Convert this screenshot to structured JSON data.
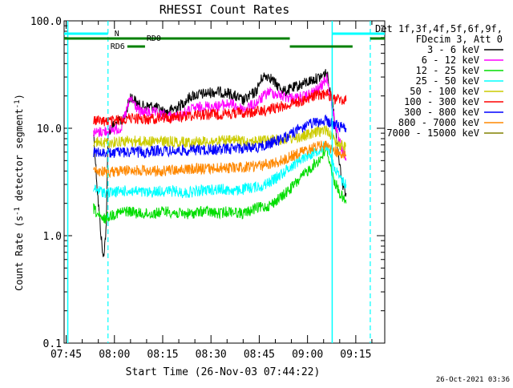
{
  "chart_data": {
    "type": "line",
    "title": "RHESSI Count Rates",
    "xlabel": "Start Time (26-Nov-03 07:44:22)",
    "ylabel_prefix": "Count Rate (s",
    "ylabel_sup": "-1",
    "ylabel_suffix": " detector segment",
    "ylabel_end": ")",
    "y_scale": "log",
    "ylim": [
      0.1,
      100.0
    ],
    "x_start": "07:44:22",
    "x_end": "09:24:00",
    "x_ticks": [
      "07:45",
      "08:00",
      "08:15",
      "08:30",
      "08:45",
      "09:00",
      "09:15"
    ],
    "y_ticks": [
      "0.1",
      "1.0",
      "10.0",
      "100.0"
    ],
    "grid": false,
    "legend_placement": "right",
    "legend_header": [
      "Det 1f,3f,4f,5f,6f,9f,",
      "FDecim 3, Att 0"
    ],
    "footer_date": "26-Oct-2021 03:36",
    "series": [
      {
        "name": "3 - 6 keV",
        "color": "#000000",
        "points": [
          [
            "07:53:30",
            9
          ],
          [
            "07:55:00",
            2.0
          ],
          [
            "07:56:30",
            0.6
          ],
          [
            "07:57:30",
            1.2
          ],
          [
            "07:58:00",
            9
          ],
          [
            "08:00:00",
            11
          ],
          [
            "08:03:00",
            12
          ],
          [
            "08:05:00",
            20
          ],
          [
            "08:08:00",
            16
          ],
          [
            "08:12:00",
            16
          ],
          [
            "08:16:00",
            14
          ],
          [
            "08:20:00",
            16
          ],
          [
            "08:24:00",
            20
          ],
          [
            "08:28:00",
            21
          ],
          [
            "08:32:00",
            22
          ],
          [
            "08:36:00",
            21
          ],
          [
            "08:40:00",
            18
          ],
          [
            "08:44:00",
            22
          ],
          [
            "08:46:00",
            30
          ],
          [
            "08:48:00",
            31
          ],
          [
            "08:50:00",
            26
          ],
          [
            "08:53:00",
            22
          ],
          [
            "08:56:00",
            24
          ],
          [
            "09:00:00",
            27
          ],
          [
            "09:04:00",
            30
          ],
          [
            "09:06:00",
            33
          ],
          [
            "09:08:00",
            15
          ],
          [
            "09:09:30",
            6
          ],
          [
            "09:11:00",
            3
          ],
          [
            "09:12:00",
            2.5
          ]
        ]
      },
      {
        "name": "6 - 12 keV",
        "color": "#ff00ff",
        "points": [
          [
            "07:53:30",
            9
          ],
          [
            "07:58:00",
            9.5
          ],
          [
            "08:02:00",
            10
          ],
          [
            "08:05:00",
            19
          ],
          [
            "08:08:00",
            14
          ],
          [
            "08:12:00",
            14
          ],
          [
            "08:16:00",
            13
          ],
          [
            "08:20:00",
            13
          ],
          [
            "08:24:00",
            15
          ],
          [
            "08:28:00",
            16
          ],
          [
            "08:32:00",
            16
          ],
          [
            "08:36:00",
            17
          ],
          [
            "08:40:00",
            15
          ],
          [
            "08:44:00",
            17
          ],
          [
            "08:48:00",
            22
          ],
          [
            "08:52:00",
            20
          ],
          [
            "08:56:00",
            19
          ],
          [
            "09:00:00",
            20
          ],
          [
            "09:04:00",
            24
          ],
          [
            "09:06:00",
            30
          ],
          [
            "09:08:00",
            14
          ],
          [
            "09:09:30",
            8
          ],
          [
            "09:11:00",
            6
          ],
          [
            "09:12:00",
            5
          ]
        ]
      },
      {
        "name": "12 - 25 keV",
        "color": "#00dd00",
        "points": [
          [
            "07:53:30",
            1.8
          ],
          [
            "07:56:00",
            1.4
          ],
          [
            "08:00:00",
            1.6
          ],
          [
            "08:04:00",
            1.7
          ],
          [
            "08:08:00",
            1.6
          ],
          [
            "08:12:00",
            1.6
          ],
          [
            "08:16:00",
            1.7
          ],
          [
            "08:20:00",
            1.6
          ],
          [
            "08:24:00",
            1.6
          ],
          [
            "08:28:00",
            1.7
          ],
          [
            "08:32:00",
            1.6
          ],
          [
            "08:36:00",
            1.7
          ],
          [
            "08:40:00",
            1.6
          ],
          [
            "08:44:00",
            1.8
          ],
          [
            "08:48:00",
            1.9
          ],
          [
            "08:52:00",
            2.3
          ],
          [
            "08:56:00",
            3.0
          ],
          [
            "09:00:00",
            4.0
          ],
          [
            "09:04:00",
            5.2
          ],
          [
            "09:06:00",
            6.5
          ],
          [
            "09:08:00",
            3.4
          ],
          [
            "09:10:00",
            2.5
          ],
          [
            "09:12:00",
            2.0
          ]
        ]
      },
      {
        "name": "25 - 50 keV",
        "color": "#00ffff",
        "points": [
          [
            "07:53:30",
            2.7
          ],
          [
            "07:58:00",
            2.5
          ],
          [
            "08:02:00",
            2.6
          ],
          [
            "08:06:00",
            2.6
          ],
          [
            "08:10:00",
            2.5
          ],
          [
            "08:14:00",
            2.6
          ],
          [
            "08:18:00",
            2.6
          ],
          [
            "08:22:00",
            2.5
          ],
          [
            "08:26:00",
            2.6
          ],
          [
            "08:30:00",
            2.7
          ],
          [
            "08:34:00",
            2.7
          ],
          [
            "08:38:00",
            2.6
          ],
          [
            "08:42:00",
            2.8
          ],
          [
            "08:46:00",
            2.9
          ],
          [
            "08:50:00",
            3.4
          ],
          [
            "08:54:00",
            4.2
          ],
          [
            "08:58:00",
            5.2
          ],
          [
            "09:02:00",
            6.0
          ],
          [
            "09:06:00",
            7.0
          ],
          [
            "09:08:00",
            4.6
          ],
          [
            "09:10:00",
            3.4
          ],
          [
            "09:12:00",
            3.0
          ]
        ]
      },
      {
        "name": "50 - 100 keV",
        "color": "#cccc00",
        "points": [
          [
            "07:53:30",
            7.5
          ],
          [
            "07:58:00",
            7.3
          ],
          [
            "08:02:00",
            7.6
          ],
          [
            "08:06:00",
            7.6
          ],
          [
            "08:10:00",
            7.5
          ],
          [
            "08:14:00",
            7.6
          ],
          [
            "08:18:00",
            7.5
          ],
          [
            "08:22:00",
            7.4
          ],
          [
            "08:26:00",
            7.6
          ],
          [
            "08:30:00",
            7.5
          ],
          [
            "08:34:00",
            7.6
          ],
          [
            "08:38:00",
            7.7
          ],
          [
            "08:42:00",
            7.6
          ],
          [
            "08:46:00",
            7.7
          ],
          [
            "08:50:00",
            7.8
          ],
          [
            "08:54:00",
            8.0
          ],
          [
            "08:58:00",
            8.3
          ],
          [
            "09:02:00",
            9.0
          ],
          [
            "09:06:00",
            9.8
          ],
          [
            "09:08:00",
            8.0
          ],
          [
            "09:10:00",
            7.0
          ],
          [
            "09:12:00",
            6.8
          ]
        ]
      },
      {
        "name": "100 - 300 keV",
        "color": "#ff0000",
        "points": [
          [
            "07:53:30",
            12
          ],
          [
            "07:58:00",
            11.5
          ],
          [
            "08:02:00",
            12
          ],
          [
            "08:06:00",
            12.5
          ],
          [
            "08:10:00",
            12
          ],
          [
            "08:14:00",
            12.5
          ],
          [
            "08:18:00",
            12.5
          ],
          [
            "08:22:00",
            13
          ],
          [
            "08:26:00",
            13.5
          ],
          [
            "08:30:00",
            13.5
          ],
          [
            "08:34:00",
            13.5
          ],
          [
            "08:38:00",
            14
          ],
          [
            "08:42:00",
            14
          ],
          [
            "08:46:00",
            14.5
          ],
          [
            "08:50:00",
            15.5
          ],
          [
            "08:54:00",
            16.5
          ],
          [
            "08:58:00",
            18
          ],
          [
            "09:02:00",
            20
          ],
          [
            "09:06:00",
            21
          ],
          [
            "09:08:00",
            19
          ],
          [
            "09:10:00",
            18.5
          ],
          [
            "09:12:00",
            18
          ]
        ]
      },
      {
        "name": "300 - 800 keV",
        "color": "#0000ff",
        "points": [
          [
            "07:53:30",
            6.0
          ],
          [
            "07:58:00",
            5.8
          ],
          [
            "08:02:00",
            6.0
          ],
          [
            "08:06:00",
            6.0
          ],
          [
            "08:10:00",
            6.0
          ],
          [
            "08:14:00",
            6.2
          ],
          [
            "08:18:00",
            6.1
          ],
          [
            "08:22:00",
            6.2
          ],
          [
            "08:26:00",
            6.3
          ],
          [
            "08:30:00",
            6.3
          ],
          [
            "08:34:00",
            6.4
          ],
          [
            "08:38:00",
            6.5
          ],
          [
            "08:42:00",
            6.6
          ],
          [
            "08:46:00",
            6.8
          ],
          [
            "08:50:00",
            7.5
          ],
          [
            "08:54:00",
            8.5
          ],
          [
            "08:58:00",
            10.0
          ],
          [
            "09:02:00",
            11.2
          ],
          [
            "09:06:00",
            11.8
          ],
          [
            "09:08:00",
            10.8
          ],
          [
            "09:10:00",
            10.3
          ],
          [
            "09:12:00",
            10.0
          ]
        ]
      },
      {
        "name": "800 - 7000 keV",
        "color": "#ff8800",
        "points": [
          [
            "07:53:30",
            4.0
          ],
          [
            "07:58:00",
            3.9
          ],
          [
            "08:02:00",
            4.0
          ],
          [
            "08:06:00",
            4.1
          ],
          [
            "08:10:00",
            4.0
          ],
          [
            "08:14:00",
            4.0
          ],
          [
            "08:18:00",
            4.1
          ],
          [
            "08:22:00",
            4.1
          ],
          [
            "08:26:00",
            4.2
          ],
          [
            "08:30:00",
            4.2
          ],
          [
            "08:34:00",
            4.3
          ],
          [
            "08:38:00",
            4.3
          ],
          [
            "08:42:00",
            4.4
          ],
          [
            "08:46:00",
            4.5
          ],
          [
            "08:50:00",
            4.8
          ],
          [
            "08:54:00",
            5.3
          ],
          [
            "08:58:00",
            6.0
          ],
          [
            "09:02:00",
            6.6
          ],
          [
            "09:06:00",
            7.0
          ],
          [
            "09:08:00",
            6.3
          ],
          [
            "09:10:00",
            5.8
          ],
          [
            "09:12:00",
            5.5
          ]
        ]
      },
      {
        "name": "7000 - 15000 keV",
        "color": "#808000",
        "points": []
      }
    ],
    "segments": {
      "color": "#00ffff",
      "lines_solid": [
        "07:45:30",
        "09:07:40"
      ],
      "lines_dashed": [
        "07:58:00",
        "09:19:30"
      ],
      "attenuator_bars": [
        [
          "07:44:22",
          "07:58:00"
        ],
        [
          "09:07:40",
          "09:24:00"
        ]
      ],
      "attenuator_label": "N"
    },
    "decimation": {
      "color": "#008000",
      "rd0_label": "RD0",
      "rd6_label": "RD6",
      "rd0_bars": [
        [
          "07:44:22",
          "08:54:30"
        ],
        [
          "09:19:30",
          "09:24:00"
        ]
      ],
      "rd6_bars": [
        [
          "08:04:00",
          "08:09:30"
        ],
        [
          "08:54:30",
          "09:14:00"
        ]
      ]
    }
  }
}
